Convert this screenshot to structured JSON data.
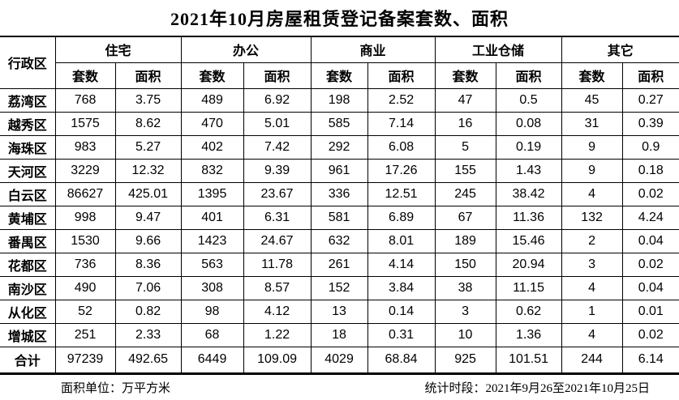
{
  "title": "2021年10月房屋租赁登记备案套数、面积",
  "table": {
    "corner_header": "行政区",
    "categories": [
      "住宅",
      "办公",
      "商业",
      "工业仓储",
      "其它"
    ],
    "sub_headers": [
      "套数",
      "面积"
    ],
    "rows": [
      {
        "district": "荔湾区",
        "values": [
          "768",
          "3.75",
          "489",
          "6.92",
          "198",
          "2.52",
          "47",
          "0.5",
          "45",
          "0.27"
        ]
      },
      {
        "district": "越秀区",
        "values": [
          "1575",
          "8.62",
          "470",
          "5.01",
          "585",
          "7.14",
          "16",
          "0.08",
          "31",
          "0.39"
        ]
      },
      {
        "district": "海珠区",
        "values": [
          "983",
          "5.27",
          "402",
          "7.42",
          "292",
          "6.08",
          "5",
          "0.19",
          "9",
          "0.9"
        ]
      },
      {
        "district": "天河区",
        "values": [
          "3229",
          "12.32",
          "832",
          "9.39",
          "961",
          "17.26",
          "155",
          "1.43",
          "9",
          "0.18"
        ]
      },
      {
        "district": "白云区",
        "values": [
          "86627",
          "425.01",
          "1395",
          "23.67",
          "336",
          "12.51",
          "245",
          "38.42",
          "4",
          "0.02"
        ]
      },
      {
        "district": "黄埔区",
        "values": [
          "998",
          "9.47",
          "401",
          "6.31",
          "581",
          "6.89",
          "67",
          "11.36",
          "132",
          "4.24"
        ]
      },
      {
        "district": "番禺区",
        "values": [
          "1530",
          "9.66",
          "1423",
          "24.67",
          "632",
          "8.01",
          "189",
          "15.46",
          "2",
          "0.04"
        ]
      },
      {
        "district": "花都区",
        "values": [
          "736",
          "8.36",
          "563",
          "11.78",
          "261",
          "4.14",
          "150",
          "20.94",
          "3",
          "0.02"
        ]
      },
      {
        "district": "南沙区",
        "values": [
          "490",
          "7.06",
          "308",
          "8.57",
          "152",
          "3.84",
          "38",
          "11.15",
          "4",
          "0.04"
        ]
      },
      {
        "district": "从化区",
        "values": [
          "52",
          "0.82",
          "98",
          "4.12",
          "13",
          "0.14",
          "3",
          "0.62",
          "1",
          "0.01"
        ]
      },
      {
        "district": "增城区",
        "values": [
          "251",
          "2.33",
          "68",
          "1.22",
          "18",
          "0.31",
          "10",
          "1.36",
          "4",
          "0.02"
        ]
      }
    ],
    "total": {
      "district": "合计",
      "values": [
        "97239",
        "492.65",
        "6449",
        "109.09",
        "4029",
        "68.84",
        "925",
        "101.51",
        "244",
        "6.14"
      ]
    }
  },
  "footer": {
    "area_unit": "面积单位：万平方米",
    "period": "统计时段：2021年9月26至2021年10月25日"
  }
}
